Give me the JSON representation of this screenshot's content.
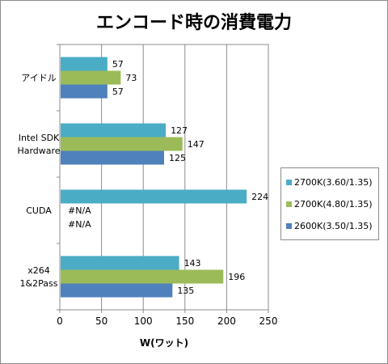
{
  "chart_data": {
    "type": "bar",
    "orientation": "horizontal",
    "title": "エンコード時の消費電力",
    "xlabel": "W(ワット)",
    "ylabel": "",
    "xlim": [
      0,
      250
    ],
    "xticks": [
      0,
      50,
      100,
      150,
      200,
      250
    ],
    "grid": true,
    "legend_position": "right",
    "categories": [
      "アイドル",
      "Intel SDK\nHardware",
      "CUDA",
      "x264\n1&2Pass"
    ],
    "series": [
      {
        "name": "2700K(3.60/1.35)",
        "color": "#4bacc6",
        "values": [
          57,
          127,
          224,
          143
        ],
        "labels": [
          "57",
          "127",
          "224",
          "143"
        ]
      },
      {
        "name": "2700K(4.80/1.35)",
        "color": "#9bbb59",
        "values": [
          73,
          147,
          null,
          196
        ],
        "labels": [
          "73",
          "147",
          "#N/A",
          "196"
        ]
      },
      {
        "name": "2600K(3.50/1.35)",
        "color": "#4f81bd",
        "values": [
          57,
          125,
          null,
          135
        ],
        "labels": [
          "57",
          "125",
          "#N/A",
          "135"
        ]
      }
    ]
  }
}
